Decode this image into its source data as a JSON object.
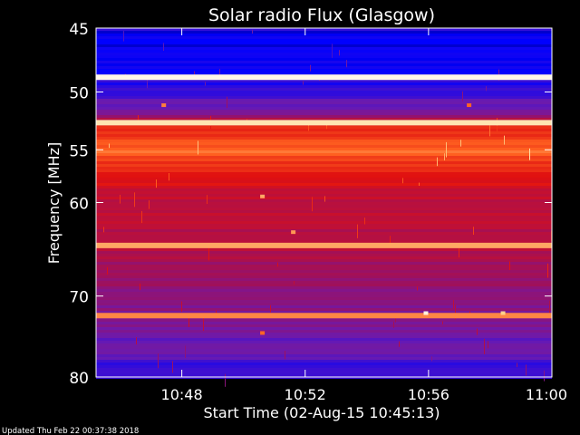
{
  "chart_data": {
    "type": "heatmap",
    "title": "Solar radio Flux (Glasgow)",
    "ylabel": "Frequency [MHz]",
    "xlabel": "Start Time (02-Aug-15 10:45:13)",
    "footer": "Updated Thu Feb 22 00:37:38 2018",
    "y_scale": "log",
    "ylim": [
      45,
      80
    ],
    "y_ticks": [
      45,
      50,
      55,
      60,
      70,
      80
    ],
    "y_tick_labels": [
      "45",
      "50",
      "55",
      "60",
      "70",
      "80"
    ],
    "xlim_minutes": [
      45.22,
      60
    ],
    "x_ticks_minutes": [
      48,
      52,
      56,
      60
    ],
    "x_tick_labels": [
      "10:48",
      "10:52",
      "10:56",
      "11:00"
    ],
    "colormap": [
      "#000040",
      "#0000ff",
      "#6a1ab0",
      "#a0105a",
      "#e01010",
      "#ff6020",
      "#ffd890",
      "#ffffff"
    ],
    "background_intensity": [
      {
        "f": 45,
        "v": 0.12
      },
      {
        "f": 47,
        "v": 0.14
      },
      {
        "f": 48.6,
        "v": 0.18
      },
      {
        "f": 50,
        "v": 0.22
      },
      {
        "f": 51.5,
        "v": 0.3
      },
      {
        "f": 52.4,
        "v": 0.55
      },
      {
        "f": 53,
        "v": 0.6
      },
      {
        "f": 54,
        "v": 0.66
      },
      {
        "f": 55,
        "v": 0.72
      },
      {
        "f": 56,
        "v": 0.65
      },
      {
        "f": 57,
        "v": 0.6
      },
      {
        "f": 58,
        "v": 0.55
      },
      {
        "f": 60,
        "v": 0.5
      },
      {
        "f": 63,
        "v": 0.48
      },
      {
        "f": 65,
        "v": 0.46
      },
      {
        "f": 68,
        "v": 0.4
      },
      {
        "f": 70,
        "v": 0.36
      },
      {
        "f": 72,
        "v": 0.35
      },
      {
        "f": 75,
        "v": 0.3
      },
      {
        "f": 78,
        "v": 0.24
      },
      {
        "f": 80,
        "v": 0.2
      }
    ],
    "bright_lines_mhz": [
      {
        "f": 48.8,
        "v": 0.97
      },
      {
        "f": 52.6,
        "v": 0.9
      },
      {
        "f": 64.4,
        "v": 0.8
      },
      {
        "f": 72.3,
        "v": 0.76
      }
    ],
    "spots": [
      {
        "t": 47.4,
        "f": 51.1,
        "v": 0.75
      },
      {
        "t": 50.6,
        "f": 59.4,
        "v": 0.8
      },
      {
        "t": 51.6,
        "f": 63.0,
        "v": 0.78
      },
      {
        "t": 50.6,
        "f": 74.4,
        "v": 0.72
      },
      {
        "t": 57.3,
        "f": 51.1,
        "v": 0.72
      },
      {
        "t": 55.9,
        "f": 72.0,
        "v": 0.96
      },
      {
        "t": 58.4,
        "f": 72.0,
        "v": 0.85
      }
    ]
  }
}
